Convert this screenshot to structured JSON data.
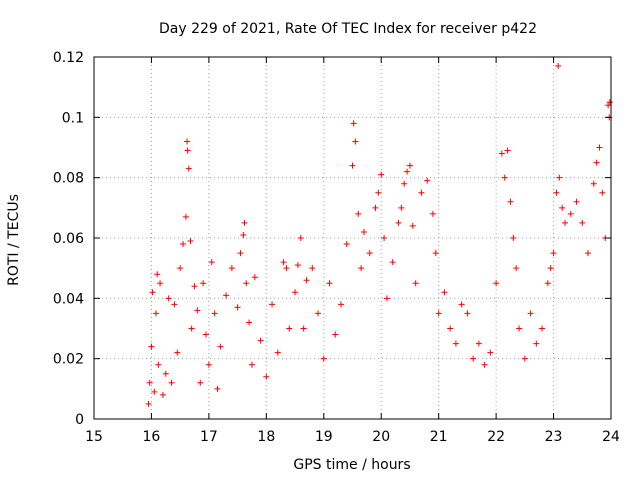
{
  "chart_data": {
    "type": "scatter",
    "title": "Day 229 of 2021, Rate Of TEC Index for receiver p422",
    "xlabel": "GPS time / hours",
    "ylabel": "ROTI / TECUs",
    "xlim": [
      15,
      24
    ],
    "ylim": [
      0,
      0.12
    ],
    "x_ticks": [
      "15",
      "16",
      "17",
      "18",
      "19",
      "20",
      "21",
      "22",
      "23",
      "24"
    ],
    "y_ticks": [
      "0",
      "0.02",
      "0.04",
      "0.06",
      "0.08",
      "0.1",
      "0.12"
    ],
    "grid": true,
    "marker": "plus",
    "color": "#ff0000",
    "series": [
      {
        "name": "ROTI",
        "points": [
          [
            15.95,
            0.005
          ],
          [
            15.97,
            0.012
          ],
          [
            16.0,
            0.024
          ],
          [
            16.02,
            0.042
          ],
          [
            16.05,
            0.009
          ],
          [
            16.08,
            0.035
          ],
          [
            16.1,
            0.048
          ],
          [
            16.12,
            0.018
          ],
          [
            16.15,
            0.045
          ],
          [
            16.2,
            0.008
          ],
          [
            16.25,
            0.015
          ],
          [
            16.3,
            0.04
          ],
          [
            16.35,
            0.012
          ],
          [
            16.4,
            0.038
          ],
          [
            16.45,
            0.022
          ],
          [
            16.5,
            0.05
          ],
          [
            16.55,
            0.058
          ],
          [
            16.6,
            0.067
          ],
          [
            16.62,
            0.092
          ],
          [
            16.63,
            0.089
          ],
          [
            16.65,
            0.083
          ],
          [
            16.68,
            0.059
          ],
          [
            16.7,
            0.03
          ],
          [
            16.75,
            0.044
          ],
          [
            16.8,
            0.036
          ],
          [
            16.85,
            0.012
          ],
          [
            16.9,
            0.045
          ],
          [
            16.95,
            0.028
          ],
          [
            17.0,
            0.018
          ],
          [
            17.05,
            0.052
          ],
          [
            17.1,
            0.035
          ],
          [
            17.15,
            0.01
          ],
          [
            17.2,
            0.024
          ],
          [
            17.3,
            0.041
          ],
          [
            17.4,
            0.05
          ],
          [
            17.5,
            0.037
          ],
          [
            17.55,
            0.055
          ],
          [
            17.6,
            0.061
          ],
          [
            17.62,
            0.065
          ],
          [
            17.65,
            0.045
          ],
          [
            17.7,
            0.032
          ],
          [
            17.75,
            0.018
          ],
          [
            17.8,
            0.047
          ],
          [
            17.9,
            0.026
          ],
          [
            18.0,
            0.014
          ],
          [
            18.1,
            0.038
          ],
          [
            18.2,
            0.022
          ],
          [
            18.3,
            0.052
          ],
          [
            18.35,
            0.05
          ],
          [
            18.4,
            0.03
          ],
          [
            18.5,
            0.042
          ],
          [
            18.55,
            0.051
          ],
          [
            18.6,
            0.06
          ],
          [
            18.65,
            0.03
          ],
          [
            18.7,
            0.046
          ],
          [
            18.8,
            0.05
          ],
          [
            18.9,
            0.035
          ],
          [
            19.0,
            0.02
          ],
          [
            19.1,
            0.045
          ],
          [
            19.2,
            0.028
          ],
          [
            19.3,
            0.038
          ],
          [
            19.4,
            0.058
          ],
          [
            19.5,
            0.084
          ],
          [
            19.52,
            0.098
          ],
          [
            19.55,
            0.092
          ],
          [
            19.6,
            0.068
          ],
          [
            19.65,
            0.05
          ],
          [
            19.7,
            0.062
          ],
          [
            19.8,
            0.055
          ],
          [
            19.9,
            0.07
          ],
          [
            19.95,
            0.075
          ],
          [
            20.0,
            0.081
          ],
          [
            20.05,
            0.06
          ],
          [
            20.1,
            0.04
          ],
          [
            20.2,
            0.052
          ],
          [
            20.3,
            0.065
          ],
          [
            20.35,
            0.07
          ],
          [
            20.4,
            0.078
          ],
          [
            20.45,
            0.082
          ],
          [
            20.5,
            0.084
          ],
          [
            20.55,
            0.064
          ],
          [
            20.6,
            0.045
          ],
          [
            20.7,
            0.075
          ],
          [
            20.8,
            0.079
          ],
          [
            20.9,
            0.068
          ],
          [
            20.95,
            0.055
          ],
          [
            21.0,
            0.035
          ],
          [
            21.1,
            0.042
          ],
          [
            21.2,
            0.03
          ],
          [
            21.3,
            0.025
          ],
          [
            21.4,
            0.038
          ],
          [
            21.5,
            0.035
          ],
          [
            21.6,
            0.02
          ],
          [
            21.7,
            0.025
          ],
          [
            21.8,
            0.018
          ],
          [
            21.9,
            0.022
          ],
          [
            22.0,
            0.045
          ],
          [
            22.1,
            0.088
          ],
          [
            22.15,
            0.08
          ],
          [
            22.2,
            0.089
          ],
          [
            22.25,
            0.072
          ],
          [
            22.3,
            0.06
          ],
          [
            22.35,
            0.05
          ],
          [
            22.4,
            0.03
          ],
          [
            22.5,
            0.02
          ],
          [
            22.6,
            0.035
          ],
          [
            22.7,
            0.025
          ],
          [
            22.8,
            0.03
          ],
          [
            22.9,
            0.045
          ],
          [
            22.95,
            0.05
          ],
          [
            23.0,
            0.055
          ],
          [
            23.05,
            0.075
          ],
          [
            23.08,
            0.117
          ],
          [
            23.1,
            0.08
          ],
          [
            23.15,
            0.07
          ],
          [
            23.2,
            0.065
          ],
          [
            23.3,
            0.068
          ],
          [
            23.4,
            0.072
          ],
          [
            23.5,
            0.065
          ],
          [
            23.6,
            0.055
          ],
          [
            23.7,
            0.078
          ],
          [
            23.75,
            0.085
          ],
          [
            23.8,
            0.09
          ],
          [
            23.85,
            0.075
          ],
          [
            23.9,
            0.06
          ],
          [
            23.95,
            0.104
          ],
          [
            23.97,
            0.1
          ],
          [
            23.98,
            0.105
          ]
        ]
      }
    ]
  }
}
